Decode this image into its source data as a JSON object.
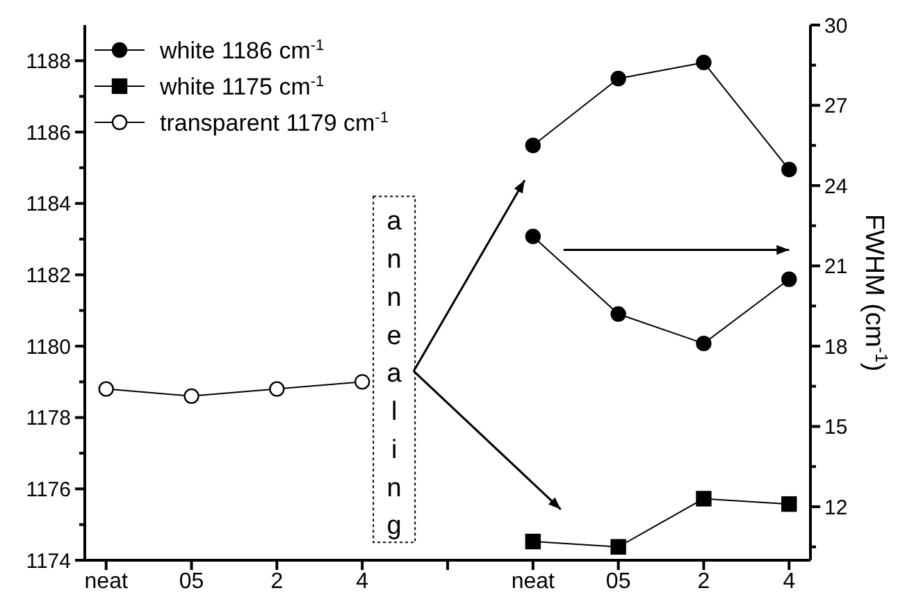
{
  "chart_data": {
    "type": "line",
    "categories": [
      "neat",
      "05",
      "2",
      "4",
      null,
      "neat",
      "05",
      "2",
      "4"
    ],
    "series": [
      {
        "name": "white 1186 cm$^{-1}$",
        "color": "#000000",
        "marker": "circle",
        "axis": "y2",
        "values": [
          null,
          null,
          null,
          null,
          null,
          25.5,
          28.0,
          28.6,
          24.6
        ]
      },
      {
        "color": "#000000",
        "marker": "circle",
        "axis": "y2",
        "values": [
          null,
          null,
          null,
          null,
          null,
          22.1,
          19.2,
          18.1,
          20.5
        ]
      },
      {
        "name": "white 1175 cm$^{-1}$",
        "color": "#000000",
        "marker": "square",
        "axis": "y2",
        "values": [
          null,
          null,
          null,
          null,
          null,
          10.7,
          10.5,
          12.3,
          12.1
        ]
      },
      {
        "name": "transparent 1179 cm$^{-1}$",
        "color": "#ffffff",
        "marker": "circle",
        "values": [
          1178.8,
          1178.6,
          1178.8,
          1179.0,
          null,
          null,
          null,
          null,
          null
        ]
      }
    ],
    "ylim": [
      1174,
      1189
    ],
    "yticks": [
      1174,
      {
        "value": 1175,
        "label": null
      },
      1176,
      {
        "value": 1177,
        "label": null
      },
      1178,
      {
        "value": 1179,
        "label": null
      },
      1180,
      {
        "value": 1181,
        "label": null
      },
      1182,
      {
        "value": 1183,
        "label": null
      },
      1184,
      {
        "value": 1185,
        "label": null
      },
      1186,
      {
        "value": 1187,
        "label": null
      },
      1188
    ],
    "y2lim": [
      10,
      30
    ],
    "y2ticks": [
      {
        "value": 10.5,
        "label": null
      },
      12,
      {
        "value": 13.5,
        "label": null
      },
      15,
      {
        "value": 16.5,
        "label": null
      },
      18,
      {
        "value": 19.5,
        "label": null
      },
      21,
      {
        "value": 22.5,
        "label": null
      },
      24,
      {
        "value": 25.5,
        "label": null
      },
      27,
      {
        "value": 28.5,
        "label": null
      },
      30
    ],
    "y2label": "FWHM (cm$^{-1}$)",
    "annotations": [
      "annealing"
    ],
    "legend": "top left",
    "grid": false,
    "line_style": "solid"
  }
}
